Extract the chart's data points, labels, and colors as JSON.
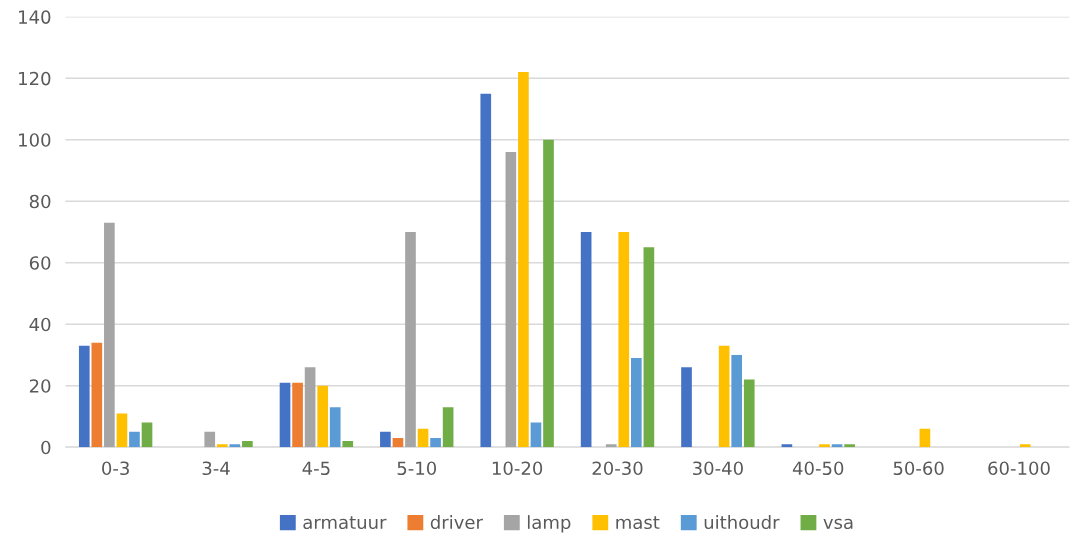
{
  "chart_data": {
    "type": "bar",
    "categories": [
      "0-3",
      "3-4",
      "4-5",
      "5-10",
      "10-20",
      "20-30",
      "30-40",
      "40-50",
      "50-60",
      "60-100"
    ],
    "series": [
      {
        "name": "armatuur",
        "color": "#4472c4",
        "values": [
          33,
          0,
          21,
          5,
          115,
          70,
          26,
          1,
          0,
          0
        ]
      },
      {
        "name": "driver",
        "color": "#ed7d31",
        "values": [
          34,
          0,
          21,
          3,
          0,
          0,
          0,
          0,
          0,
          0
        ]
      },
      {
        "name": "lamp",
        "color": "#a5a5a5",
        "values": [
          73,
          5,
          26,
          70,
          96,
          1,
          0,
          0,
          0,
          0
        ]
      },
      {
        "name": "mast",
        "color": "#ffc000",
        "values": [
          11,
          1,
          20,
          6,
          122,
          70,
          33,
          1,
          6,
          1
        ]
      },
      {
        "name": "uithoudr",
        "color": "#5b9bd5",
        "values": [
          5,
          1,
          13,
          3,
          8,
          29,
          30,
          1,
          0,
          0
        ]
      },
      {
        "name": "vsa",
        "color": "#70ad47",
        "values": [
          8,
          2,
          2,
          13,
          100,
          65,
          22,
          1,
          0,
          0
        ]
      }
    ],
    "ylim": [
      0,
      140
    ],
    "yticks": [
      0,
      20,
      40,
      60,
      80,
      100,
      120,
      140
    ],
    "grid": "y",
    "legend": "bottom"
  }
}
